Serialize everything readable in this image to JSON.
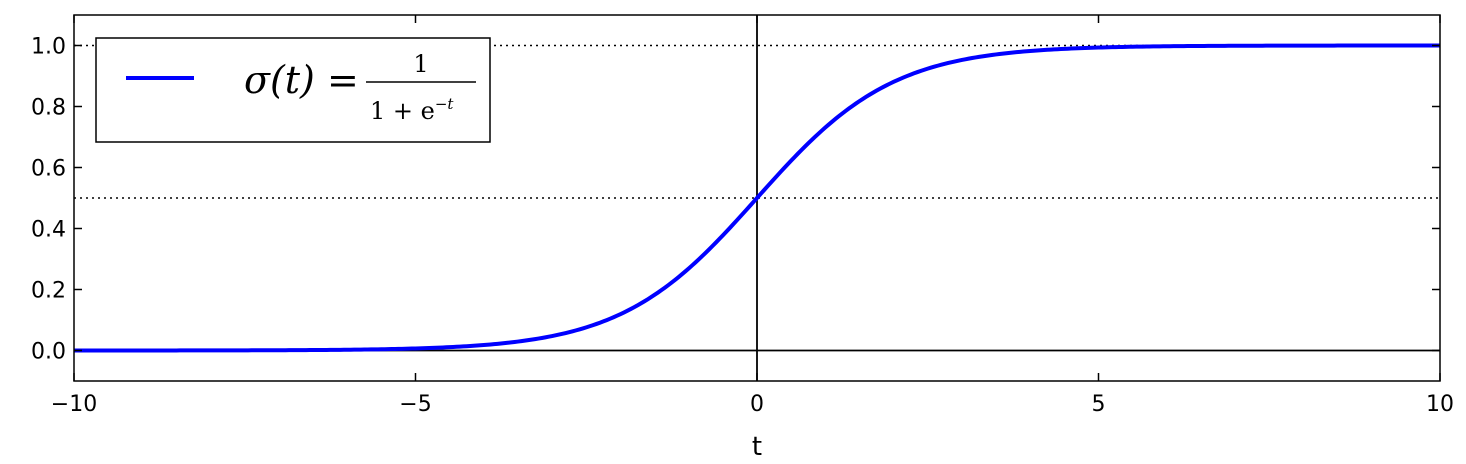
{
  "chart_data": {
    "type": "line",
    "title": "",
    "xlabel": "t",
    "ylabel": "",
    "xlim": [
      -10,
      10
    ],
    "ylim": [
      -0.1,
      1.1
    ],
    "x_ticks": [
      -10,
      -5,
      0,
      5,
      10
    ],
    "x_tick_labels": [
      "−10",
      "−5",
      "0",
      "5",
      "10"
    ],
    "y_ticks": [
      0.0,
      0.2,
      0.4,
      0.6,
      0.8,
      1.0
    ],
    "y_tick_labels": [
      "0.0",
      "0.2",
      "0.4",
      "0.6",
      "0.8",
      "1.0"
    ],
    "grid": false,
    "legend_position": "upper-left",
    "series": [
      {
        "name": "σ(t) = 1 / (1 + e^−t)",
        "color": "#0000ff",
        "x": [
          -10,
          -9,
          -8,
          -7,
          -6,
          -5,
          -4.5,
          -4,
          -3.5,
          -3,
          -2.5,
          -2,
          -1.5,
          -1,
          -0.5,
          0,
          0.5,
          1,
          1.5,
          2,
          2.5,
          3,
          3.5,
          4,
          4.5,
          5,
          6,
          7,
          8,
          9,
          10
        ],
        "y": [
          5e-05,
          0.00012,
          0.00034,
          0.00091,
          0.00247,
          0.0067,
          0.011,
          0.018,
          0.029,
          0.047,
          0.076,
          0.119,
          0.182,
          0.269,
          0.378,
          0.5,
          0.622,
          0.731,
          0.818,
          0.881,
          0.924,
          0.953,
          0.971,
          0.982,
          0.989,
          0.9933,
          0.9975,
          0.9991,
          0.9997,
          0.9999,
          0.99995
        ]
      }
    ],
    "reference_lines": [
      {
        "orientation": "horizontal",
        "y": 0.0,
        "style": "solid",
        "color": "#000000"
      },
      {
        "orientation": "horizontal",
        "y": 0.5,
        "style": "dotted",
        "color": "#000000"
      },
      {
        "orientation": "horizontal",
        "y": 1.0,
        "style": "dotted",
        "color": "#000000"
      },
      {
        "orientation": "vertical",
        "x": 0,
        "style": "solid",
        "color": "#000000"
      }
    ],
    "legend": {
      "lhs": "σ(t) =",
      "numerator": "1",
      "denominator_base": "1 + e",
      "denominator_exponent": "−t"
    }
  }
}
